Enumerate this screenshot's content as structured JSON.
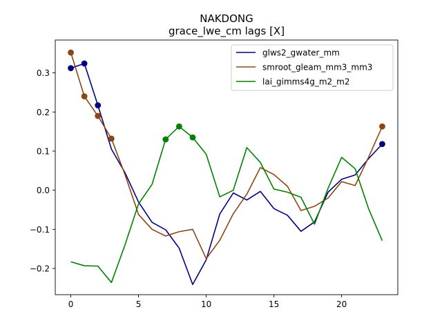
{
  "chart_data": {
    "type": "line",
    "title": "NAKDONG",
    "subtitle": "grace_lwe_cm lags [X]",
    "xlabel": "",
    "ylabel": "",
    "xlim": [
      -1.15,
      24.15
    ],
    "ylim": [
      -0.267,
      0.384
    ],
    "xticks": [
      0,
      5,
      10,
      15,
      20
    ],
    "yticks": [
      -0.2,
      -0.1,
      0.0,
      0.1,
      0.2,
      0.3
    ],
    "ytick_labels": [
      "−0.2",
      "−0.1",
      "0.0",
      "0.1",
      "0.2",
      "0.3"
    ],
    "grid": false,
    "legend_position": "top-right",
    "x": [
      0,
      1,
      2,
      3,
      4,
      5,
      6,
      7,
      8,
      9,
      10,
      11,
      12,
      13,
      14,
      15,
      16,
      17,
      18,
      19,
      20,
      21,
      22,
      23
    ],
    "series": [
      {
        "name": "glws2_gwater_mm",
        "color": "#000080",
        "values": [
          0.312,
          0.324,
          0.217,
          0.105,
          0.045,
          -0.03,
          -0.082,
          -0.101,
          -0.148,
          -0.241,
          -0.178,
          -0.061,
          -0.007,
          -0.025,
          -0.003,
          -0.047,
          -0.064,
          -0.105,
          -0.081,
          -0.005,
          0.028,
          0.039,
          0.081,
          0.118
        ],
        "markers": [
          0,
          1,
          2,
          23
        ]
      },
      {
        "name": "smroot_gleam_mm3_mm3",
        "color": "#8B4513",
        "values": [
          0.352,
          0.24,
          0.19,
          0.132,
          0.04,
          -0.062,
          -0.1,
          -0.117,
          -0.106,
          -0.1,
          -0.175,
          -0.128,
          -0.06,
          -0.01,
          0.058,
          0.04,
          0.01,
          -0.052,
          -0.041,
          -0.02,
          0.022,
          0.012,
          0.085,
          0.163
        ],
        "markers": [
          0,
          1,
          2,
          3,
          23
        ]
      },
      {
        "name": "lai_gimms4g_m2_m2",
        "color": "#008000",
        "values": [
          -0.183,
          -0.193,
          -0.194,
          -0.236,
          -0.14,
          -0.035,
          0.015,
          0.13,
          0.163,
          0.135,
          0.092,
          -0.017,
          0.0,
          0.109,
          0.071,
          0.003,
          -0.005,
          -0.018,
          -0.087,
          0.005,
          0.084,
          0.055,
          -0.048,
          -0.129
        ],
        "markers": [
          7,
          8,
          9
        ]
      }
    ]
  }
}
